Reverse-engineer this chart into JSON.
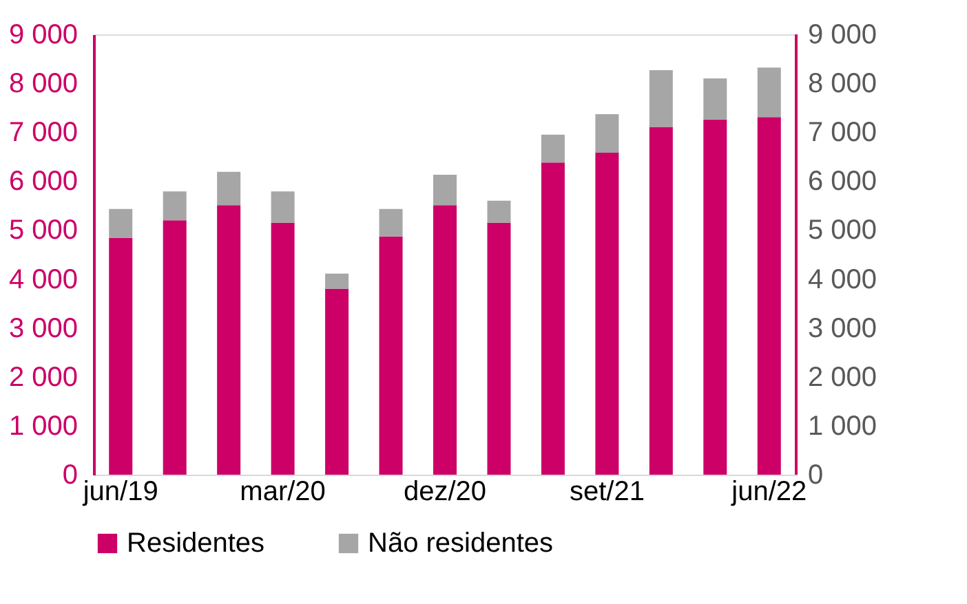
{
  "chart_data": {
    "type": "bar",
    "stacked": true,
    "categories": [
      "jun/19",
      null,
      null,
      "mar/20",
      null,
      null,
      "dez/20",
      null,
      null,
      "set/21",
      null,
      null,
      "jun/22"
    ],
    "series": [
      {
        "name": "Residentes",
        "color": "#cc0066",
        "values": [
          4840,
          5200,
          5510,
          5150,
          3800,
          4870,
          5510,
          5150,
          6380,
          6580,
          7110,
          7260,
          7310
        ]
      },
      {
        "name": "Não residentes",
        "color": "#a6a6a6",
        "values": [
          590,
          590,
          680,
          640,
          310,
          560,
          620,
          450,
          570,
          790,
          1160,
          840,
          1010
        ]
      }
    ],
    "ylim": [
      0,
      9000
    ],
    "yticks": [
      0,
      {
        "value": 1000,
        "label": "1 000"
      },
      {
        "value": 2000,
        "label": "2 000"
      },
      {
        "value": 3000,
        "label": "3 000"
      },
      {
        "value": 4000,
        "label": "4 000"
      },
      {
        "value": 5000,
        "label": "5 000"
      },
      {
        "value": 6000,
        "label": "6 000"
      },
      {
        "value": 7000,
        "label": "7 000"
      },
      {
        "value": 8000,
        "label": "8 000"
      },
      {
        "value": 9000,
        "label": "9 000"
      }
    ],
    "y2lim": [
      0,
      9000
    ],
    "y2ticks": [
      0,
      {
        "value": 1000,
        "label": "1 000"
      },
      {
        "value": 2000,
        "label": "2 000"
      },
      {
        "value": 3000,
        "label": "3 000"
      },
      {
        "value": 4000,
        "label": "4 000"
      },
      {
        "value": 5000,
        "label": "5 000"
      },
      {
        "value": 6000,
        "label": "6 000"
      },
      {
        "value": 7000,
        "label": "7 000"
      },
      {
        "value": 8000,
        "label": "8 000"
      },
      {
        "value": 9000,
        "label": "9 000"
      }
    ],
    "grid": false,
    "legend": "bottom"
  }
}
